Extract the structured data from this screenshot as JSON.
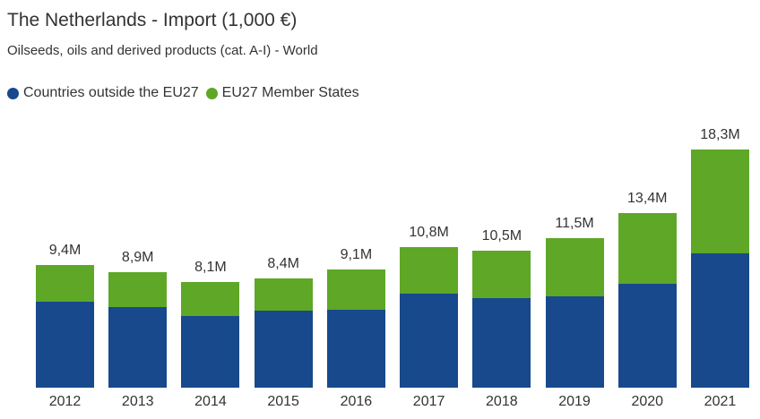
{
  "header": {
    "title": "The Netherlands - Import (1,000 €)",
    "subtitle": "Oilseeds, oils and derived products (cat. A-I) - World"
  },
  "legend": {
    "position": "top",
    "items": [
      {
        "label": "Countries outside the EU27",
        "color": "#17498C"
      },
      {
        "label": "EU27 Member States",
        "color": "#5EA727"
      }
    ]
  },
  "colors": {
    "outside_eu27": "#17498C",
    "eu27_member_states": "#5EA727",
    "text": "#333333",
    "background": "#FFFFFF"
  },
  "chart_data": {
    "type": "bar",
    "stacked": true,
    "title": "The Netherlands - Import (1,000 €)",
    "subtitle": "Oilseeds, oils and derived products (cat. A-I) - World",
    "categories": [
      "2012",
      "2013",
      "2014",
      "2015",
      "2016",
      "2017",
      "2018",
      "2019",
      "2020",
      "2021"
    ],
    "series": [
      {
        "name": "Countries outside the EU27",
        "color": "#17498C",
        "values": [
          6.6,
          6.2,
          5.5,
          5.9,
          6.0,
          7.2,
          6.9,
          7.0,
          8.0,
          10.3
        ]
      },
      {
        "name": "EU27 Member States",
        "color": "#5EA727",
        "values": [
          2.8,
          2.7,
          2.6,
          2.5,
          3.1,
          3.6,
          3.6,
          4.5,
          5.4,
          8.0
        ]
      }
    ],
    "totals": [
      9.4,
      8.9,
      8.1,
      8.4,
      9.1,
      10.8,
      10.5,
      11.5,
      13.4,
      18.3
    ],
    "total_labels": [
      "9,4M",
      "8,9M",
      "8,1M",
      "8,4M",
      "9,1M",
      "10,8M",
      "10,5M",
      "11,5M",
      "13,4M",
      "18,3M"
    ],
    "value_unit_suffix": "M",
    "xlabel": "",
    "ylabel": "",
    "ylim": [
      0,
      19
    ],
    "grid": false,
    "y_axis_visible": false,
    "legend_position": "top"
  }
}
